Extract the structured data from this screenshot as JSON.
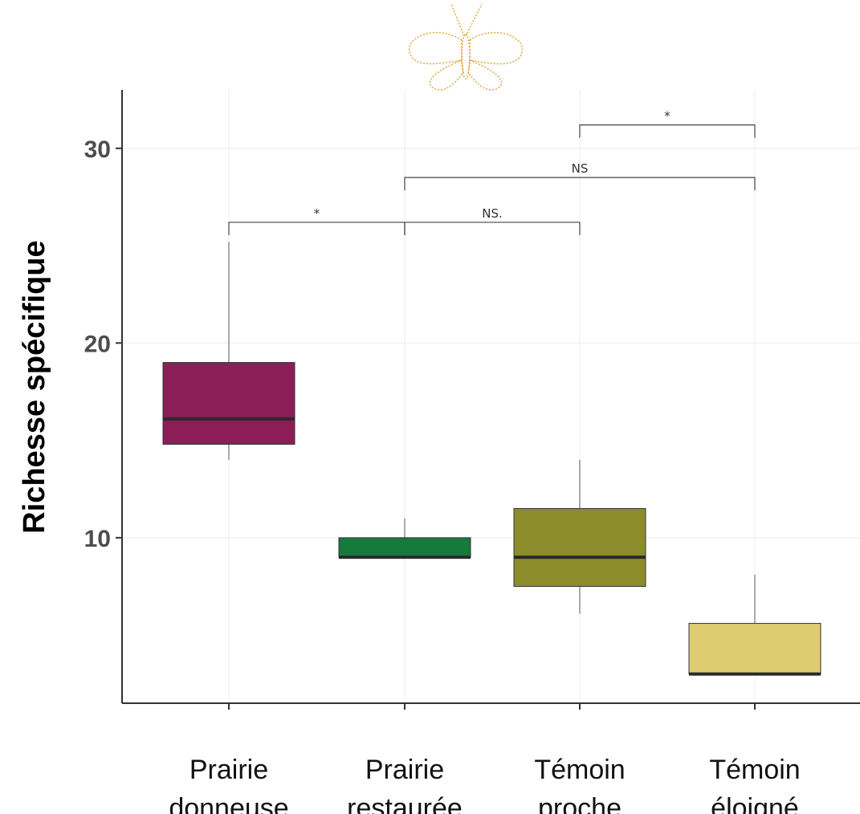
{
  "chart_data": {
    "type": "boxplot",
    "ylabel": "Richesse spécifique",
    "xlabel": "",
    "ylim": [
      1.5,
      33
    ],
    "yticks": [
      10,
      20,
      30
    ],
    "grid": true,
    "categories": [
      [
        "Prairie",
        "donneuse"
      ],
      [
        "Prairie",
        "restaurée"
      ],
      [
        "Témoin",
        "proche"
      ],
      [
        "Témoin",
        "éloigné"
      ]
    ],
    "boxes": [
      {
        "category": "Prairie donneuse",
        "min": 14,
        "q1": 14.8,
        "median": 16.1,
        "q3": 19,
        "max": 25.2,
        "color": "#8B1E57"
      },
      {
        "category": "Prairie restaurée",
        "min": 9,
        "q1": 9,
        "median": 9,
        "q3": 10,
        "max": 11,
        "color": "#167A3C"
      },
      {
        "category": "Témoin proche",
        "min": 6.1,
        "q1": 7.5,
        "median": 9,
        "q3": 11.5,
        "max": 14,
        "color": "#8C8C2C"
      },
      {
        "category": "Témoin éloigné",
        "min": 3,
        "q1": 3,
        "median": 3,
        "q3": 5.6,
        "max": 8.1,
        "color": "#DFCB72"
      }
    ],
    "comparisons": [
      {
        "from": 0,
        "to": 1,
        "y": 26.2,
        "label": "*"
      },
      {
        "from": 1,
        "to": 2,
        "y": 26.2,
        "label": "NS."
      },
      {
        "from": 1,
        "to": 3,
        "y": 28.5,
        "label": "NS"
      },
      {
        "from": 2,
        "to": 3,
        "y": 31.2,
        "label": "*"
      }
    ]
  },
  "logo": {
    "name": "butterfly-logo",
    "color": "#E0A030"
  }
}
